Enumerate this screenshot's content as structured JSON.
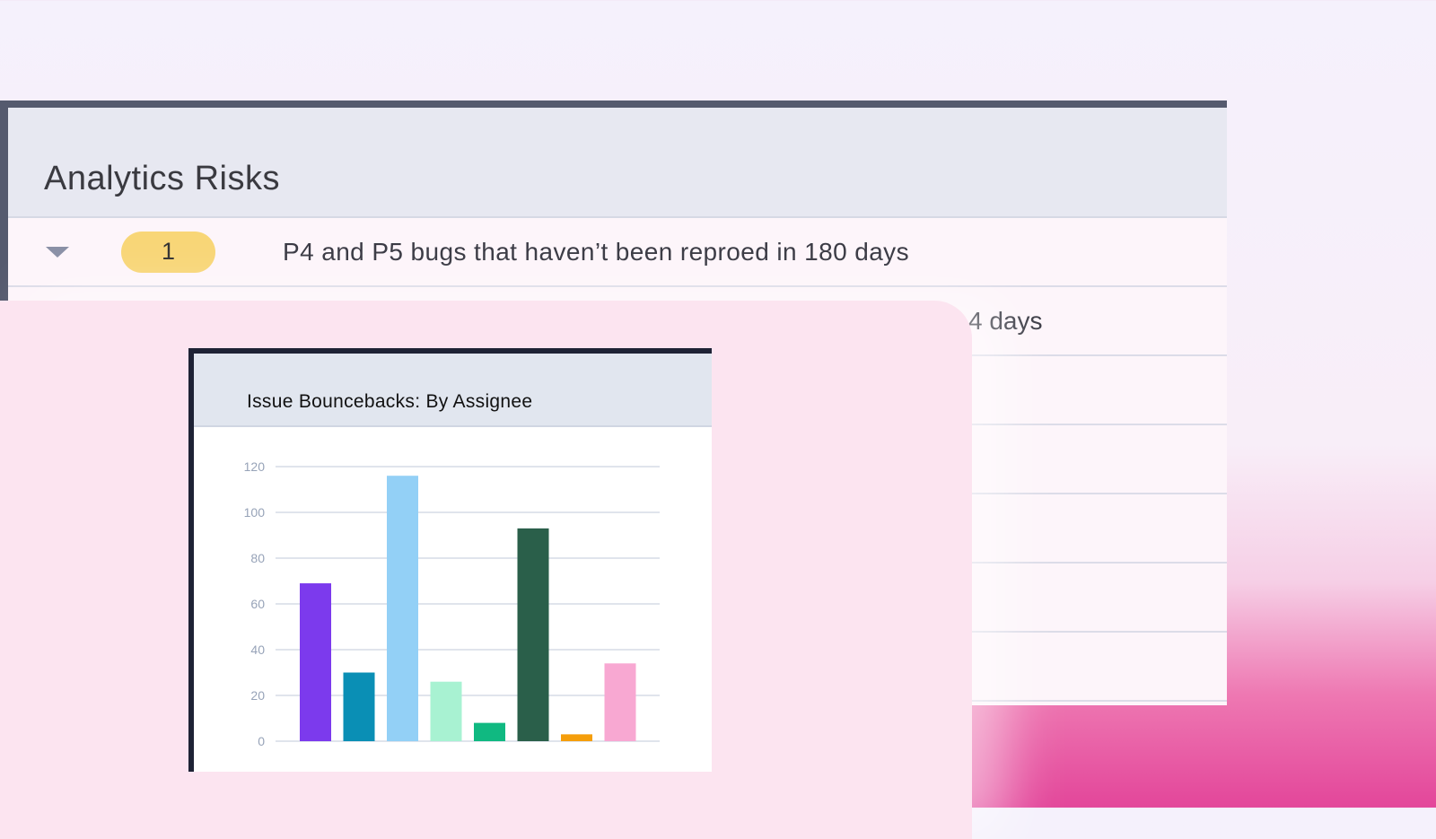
{
  "panel": {
    "title": "Analytics Risks",
    "rows": [
      {
        "count": "1",
        "text": "P4 and P5 bugs that haven’t been reproed in 180 days"
      },
      {
        "text_partial": "4 days"
      }
    ]
  },
  "chart_card": {
    "title": "Issue Bouncebacks: By Assignee"
  },
  "chart_data": {
    "type": "bar",
    "title": "Issue Bouncebacks: By Assignee",
    "xlabel": "",
    "ylabel": "",
    "ylim": [
      0,
      120
    ],
    "yticks": [
      0,
      20,
      40,
      60,
      80,
      100,
      120
    ],
    "grid": true,
    "values": [
      69,
      30,
      116,
      26,
      8,
      93,
      3,
      34
    ],
    "colors": [
      "#7c3aed",
      "#0a8fb5",
      "#93d0f6",
      "#a8f2d2",
      "#10b981",
      "#2a5f4a",
      "#f59e0b",
      "#f8a8d2"
    ]
  }
}
